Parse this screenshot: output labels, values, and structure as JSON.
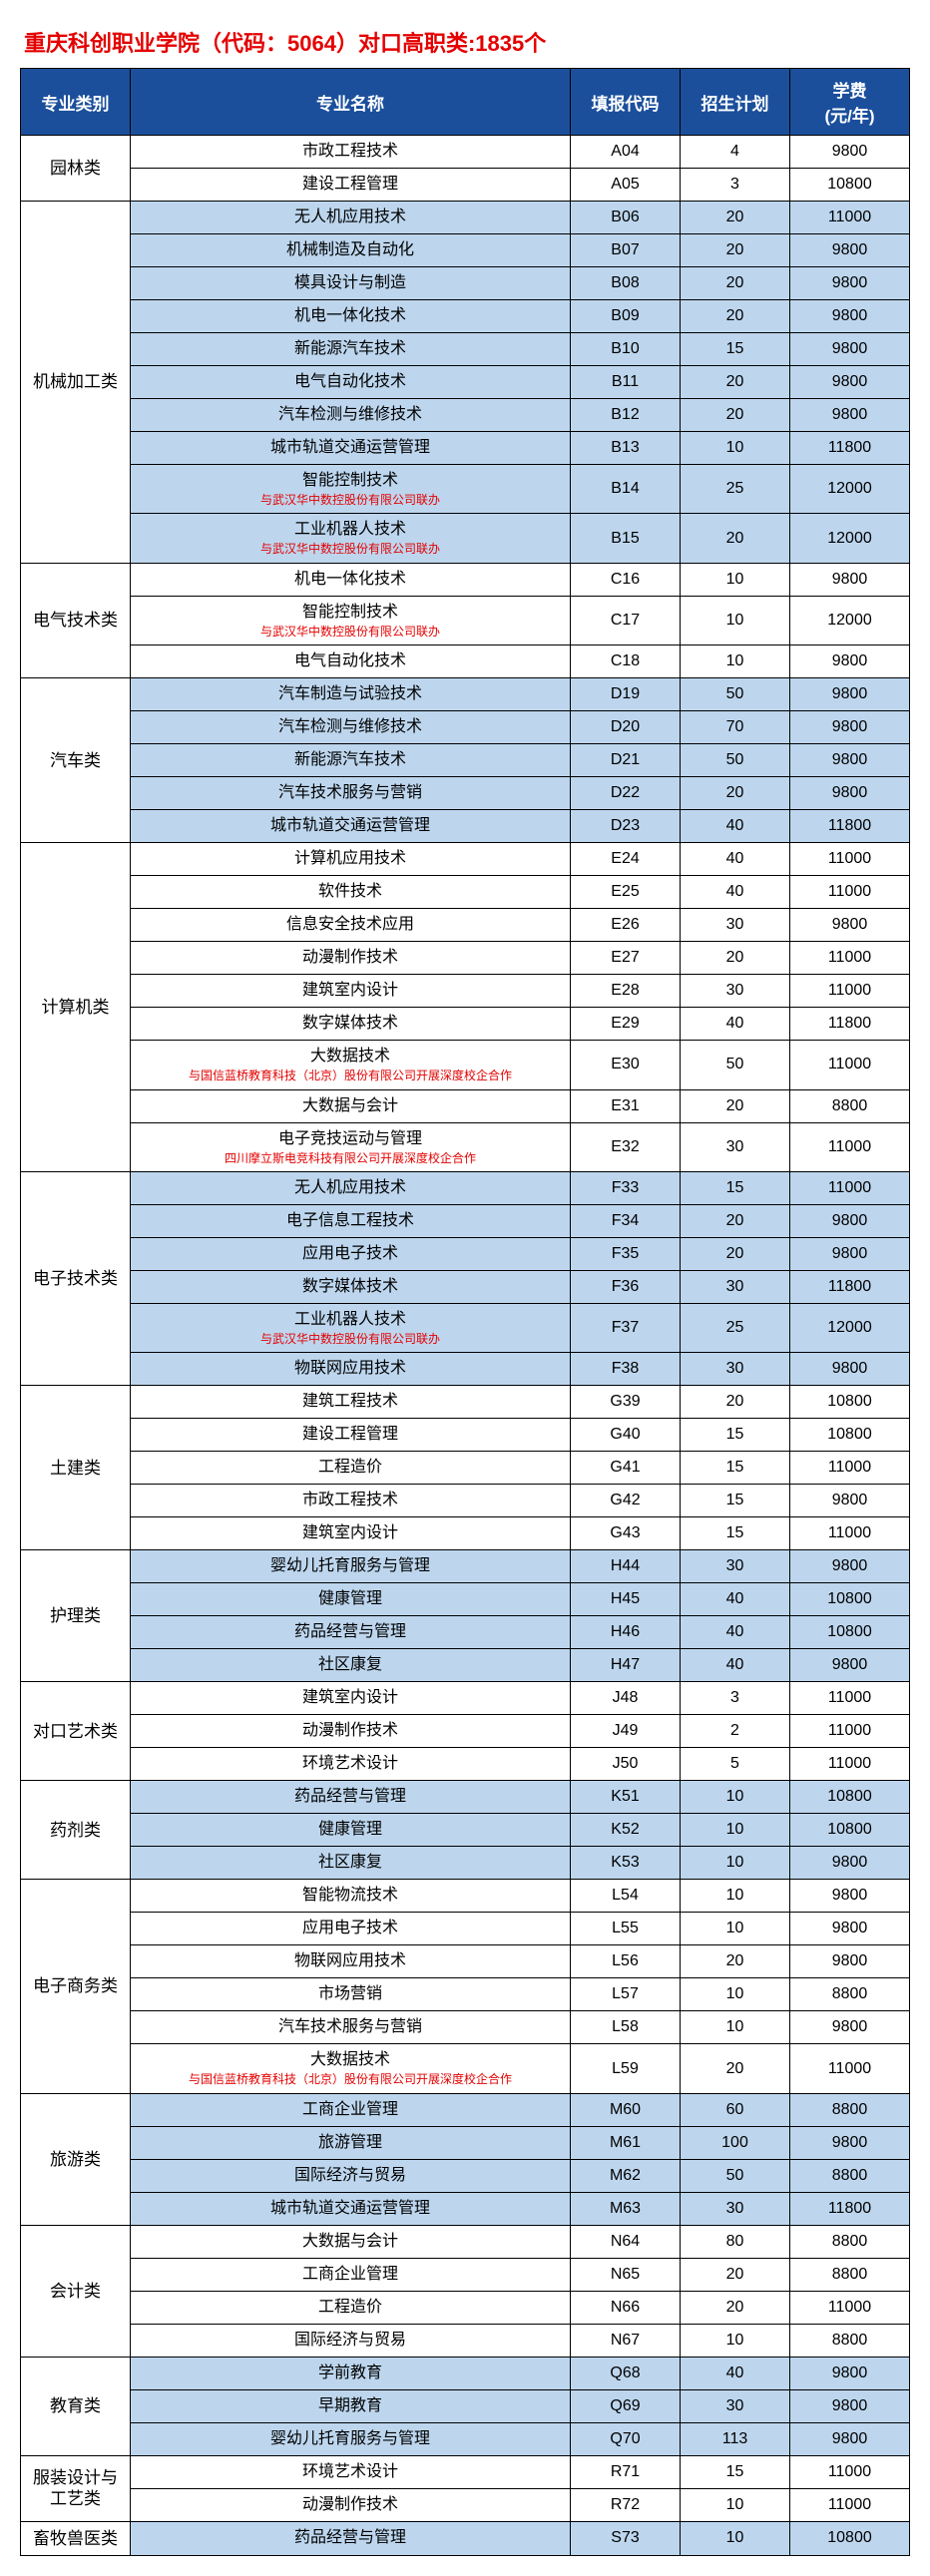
{
  "title": "重庆科创职业学院（代码：5064）对口高职类:1835个",
  "headers": [
    "专业类别",
    "专业名称",
    "填报代码",
    "招生计划",
    "学费\n(元/年)"
  ],
  "groups": [
    {
      "category": "园林类",
      "shade": false,
      "rows": [
        {
          "name": "市政工程技术",
          "code": "A04",
          "plan": "4",
          "fee": "9800"
        },
        {
          "name": "建设工程管理",
          "code": "A05",
          "plan": "3",
          "fee": "10800"
        }
      ]
    },
    {
      "category": "机械加工类",
      "shade": true,
      "rows": [
        {
          "name": "无人机应用技术",
          "code": "B06",
          "plan": "20",
          "fee": "11000"
        },
        {
          "name": "机械制造及自动化",
          "code": "B07",
          "plan": "20",
          "fee": "9800"
        },
        {
          "name": "模具设计与制造",
          "code": "B08",
          "plan": "20",
          "fee": "9800"
        },
        {
          "name": "机电一体化技术",
          "code": "B09",
          "plan": "20",
          "fee": "9800"
        },
        {
          "name": "新能源汽车技术",
          "code": "B10",
          "plan": "15",
          "fee": "9800"
        },
        {
          "name": "电气自动化技术",
          "code": "B11",
          "plan": "20",
          "fee": "9800"
        },
        {
          "name": "汽车检测与维修技术",
          "code": "B12",
          "plan": "20",
          "fee": "9800"
        },
        {
          "name": "城市轨道交通运营管理",
          "code": "B13",
          "plan": "10",
          "fee": "11800"
        },
        {
          "name": "智能控制技术",
          "sub": "与武汉华中数控股份有限公司联办",
          "code": "B14",
          "plan": "25",
          "fee": "12000"
        },
        {
          "name": "工业机器人技术",
          "sub": "与武汉华中数控股份有限公司联办",
          "code": "B15",
          "plan": "20",
          "fee": "12000"
        }
      ]
    },
    {
      "category": "电气技术类",
      "shade": false,
      "rows": [
        {
          "name": "机电一体化技术",
          "code": "C16",
          "plan": "10",
          "fee": "9800"
        },
        {
          "name": "智能控制技术",
          "sub": "与武汉华中数控股份有限公司联办",
          "code": "C17",
          "plan": "10",
          "fee": "12000"
        },
        {
          "name": "电气自动化技术",
          "code": "C18",
          "plan": "10",
          "fee": "9800"
        }
      ]
    },
    {
      "category": "汽车类",
      "shade": true,
      "rows": [
        {
          "name": "汽车制造与试验技术",
          "code": "D19",
          "plan": "50",
          "fee": "9800"
        },
        {
          "name": "汽车检测与维修技术",
          "code": "D20",
          "plan": "70",
          "fee": "9800"
        },
        {
          "name": "新能源汽车技术",
          "code": "D21",
          "plan": "50",
          "fee": "9800"
        },
        {
          "name": "汽车技术服务与营销",
          "code": "D22",
          "plan": "20",
          "fee": "9800"
        },
        {
          "name": "城市轨道交通运营管理",
          "code": "D23",
          "plan": "40",
          "fee": "11800"
        }
      ]
    },
    {
      "category": "计算机类",
      "shade": false,
      "rows": [
        {
          "name": "计算机应用技术",
          "code": "E24",
          "plan": "40",
          "fee": "11000"
        },
        {
          "name": "软件技术",
          "code": "E25",
          "plan": "40",
          "fee": "11000"
        },
        {
          "name": "信息安全技术应用",
          "code": "E26",
          "plan": "30",
          "fee": "9800"
        },
        {
          "name": "动漫制作技术",
          "code": "E27",
          "plan": "20",
          "fee": "11000"
        },
        {
          "name": "建筑室内设计",
          "code": "E28",
          "plan": "30",
          "fee": "11000"
        },
        {
          "name": "数字媒体技术",
          "code": "E29",
          "plan": "40",
          "fee": "11800"
        },
        {
          "name": "大数据技术",
          "sub": "与国信蓝桥教育科技（北京）股份有限公司开展深度校企合作",
          "code": "E30",
          "plan": "50",
          "fee": "11000"
        },
        {
          "name": "大数据与会计",
          "code": "E31",
          "plan": "20",
          "fee": "8800"
        },
        {
          "name": "电子竞技运动与管理",
          "sub": "四川摩立斯电竞科技有限公司开展深度校企合作",
          "code": "E32",
          "plan": "30",
          "fee": "11000"
        }
      ]
    },
    {
      "category": "电子技术类",
      "shade": true,
      "rows": [
        {
          "name": "无人机应用技术",
          "code": "F33",
          "plan": "15",
          "fee": "11000"
        },
        {
          "name": "电子信息工程技术",
          "code": "F34",
          "plan": "20",
          "fee": "9800"
        },
        {
          "name": "应用电子技术",
          "code": "F35",
          "plan": "20",
          "fee": "9800"
        },
        {
          "name": "数字媒体技术",
          "code": "F36",
          "plan": "30",
          "fee": "11800"
        },
        {
          "name": "工业机器人技术",
          "sub": "与武汉华中数控股份有限公司联办",
          "code": "F37",
          "plan": "25",
          "fee": "12000"
        },
        {
          "name": "物联网应用技术",
          "code": "F38",
          "plan": "30",
          "fee": "9800"
        }
      ]
    },
    {
      "category": "土建类",
      "shade": false,
      "rows": [
        {
          "name": "建筑工程技术",
          "code": "G39",
          "plan": "20",
          "fee": "10800"
        },
        {
          "name": "建设工程管理",
          "code": "G40",
          "plan": "15",
          "fee": "10800"
        },
        {
          "name": "工程造价",
          "code": "G41",
          "plan": "15",
          "fee": "11000"
        },
        {
          "name": "市政工程技术",
          "code": "G42",
          "plan": "15",
          "fee": "9800"
        },
        {
          "name": "建筑室内设计",
          "code": "G43",
          "plan": "15",
          "fee": "11000"
        }
      ]
    },
    {
      "category": "护理类",
      "shade": true,
      "rows": [
        {
          "name": "婴幼儿托育服务与管理",
          "code": "H44",
          "plan": "30",
          "fee": "9800"
        },
        {
          "name": "健康管理",
          "code": "H45",
          "plan": "40",
          "fee": "10800"
        },
        {
          "name": "药品经营与管理",
          "code": "H46",
          "plan": "40",
          "fee": "10800"
        },
        {
          "name": "社区康复",
          "code": "H47",
          "plan": "40",
          "fee": "9800"
        }
      ]
    },
    {
      "category": "对口艺术类",
      "shade": false,
      "rows": [
        {
          "name": "建筑室内设计",
          "code": "J48",
          "plan": "3",
          "fee": "11000"
        },
        {
          "name": "动漫制作技术",
          "code": "J49",
          "plan": "2",
          "fee": "11000"
        },
        {
          "name": "环境艺术设计",
          "code": "J50",
          "plan": "5",
          "fee": "11000"
        }
      ]
    },
    {
      "category": "药剂类",
      "shade": true,
      "rows": [
        {
          "name": "药品经营与管理",
          "code": "K51",
          "plan": "10",
          "fee": "10800"
        },
        {
          "name": "健康管理",
          "code": "K52",
          "plan": "10",
          "fee": "10800"
        },
        {
          "name": "社区康复",
          "code": "K53",
          "plan": "10",
          "fee": "9800"
        }
      ]
    },
    {
      "category": "电子商务类",
      "shade": false,
      "rows": [
        {
          "name": "智能物流技术",
          "code": "L54",
          "plan": "10",
          "fee": "9800"
        },
        {
          "name": "应用电子技术",
          "code": "L55",
          "plan": "10",
          "fee": "9800"
        },
        {
          "name": "物联网应用技术",
          "code": "L56",
          "plan": "20",
          "fee": "9800"
        },
        {
          "name": "市场营销",
          "code": "L57",
          "plan": "10",
          "fee": "8800"
        },
        {
          "name": "汽车技术服务与营销",
          "code": "L58",
          "plan": "10",
          "fee": "9800"
        },
        {
          "name": "大数据技术",
          "sub": "与国信蓝桥教育科技（北京）股份有限公司开展深度校企合作",
          "code": "L59",
          "plan": "20",
          "fee": "11000"
        }
      ]
    },
    {
      "category": "旅游类",
      "shade": true,
      "rows": [
        {
          "name": "工商企业管理",
          "code": "M60",
          "plan": "60",
          "fee": "8800"
        },
        {
          "name": "旅游管理",
          "code": "M61",
          "plan": "100",
          "fee": "9800"
        },
        {
          "name": "国际经济与贸易",
          "code": "M62",
          "plan": "50",
          "fee": "8800"
        },
        {
          "name": "城市轨道交通运营管理",
          "code": "M63",
          "plan": "30",
          "fee": "11800"
        }
      ]
    },
    {
      "category": "会计类",
      "shade": false,
      "rows": [
        {
          "name": "大数据与会计",
          "code": "N64",
          "plan": "80",
          "fee": "8800"
        },
        {
          "name": "工商企业管理",
          "code": "N65",
          "plan": "20",
          "fee": "8800"
        },
        {
          "name": "工程造价",
          "code": "N66",
          "plan": "20",
          "fee": "11000"
        },
        {
          "name": "国际经济与贸易",
          "code": "N67",
          "plan": "10",
          "fee": "8800"
        }
      ]
    },
    {
      "category": "教育类",
      "shade": true,
      "rows": [
        {
          "name": "学前教育",
          "code": "Q68",
          "plan": "40",
          "fee": "9800"
        },
        {
          "name": "早期教育",
          "code": "Q69",
          "plan": "30",
          "fee": "9800"
        },
        {
          "name": "婴幼儿托育服务与管理",
          "code": "Q70",
          "plan": "113",
          "fee": "9800"
        }
      ]
    },
    {
      "category": "服装设计与工艺类",
      "shade": false,
      "rows": [
        {
          "name": "环境艺术设计",
          "code": "R71",
          "plan": "15",
          "fee": "11000"
        },
        {
          "name": "动漫制作技术",
          "code": "R72",
          "plan": "10",
          "fee": "11000"
        }
      ]
    },
    {
      "category": "畜牧兽医类",
      "shade": true,
      "rows": [
        {
          "name": "药品经营与管理",
          "code": "S73",
          "plan": "10",
          "fee": "10800"
        }
      ]
    }
  ]
}
